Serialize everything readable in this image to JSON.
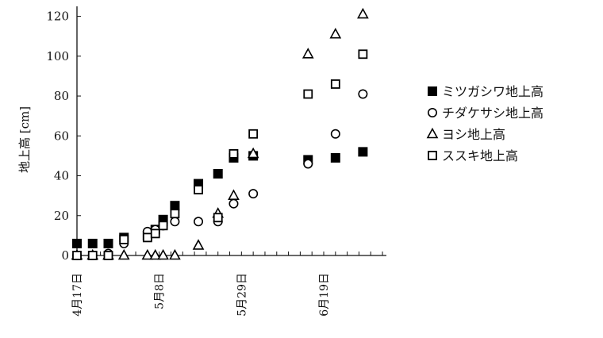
{
  "chart_data": {
    "type": "scatter",
    "title": "",
    "ylabel": "地上高 [cm]",
    "xlabel": "",
    "ylim": [
      0,
      125
    ],
    "yticks": [
      0,
      20,
      40,
      60,
      80,
      100,
      120
    ],
    "xlim": [
      "2009-04-17",
      "2009-07-05"
    ],
    "xtick_labels": [
      {
        "date": "2009-04-17",
        "label": "4月17日"
      },
      {
        "date": "2009-05-08",
        "label": "5月8日"
      },
      {
        "date": "2009-05-29",
        "label": "5月29日"
      },
      {
        "date": "2009-06-19",
        "label": "6月19日"
      }
    ],
    "legend_position": "right",
    "grid": false,
    "series": [
      {
        "name": "ミツガシワ地上高",
        "marker": "filled-square",
        "color": "#000000",
        "points": [
          {
            "x": "2009-04-17",
            "y": 6
          },
          {
            "x": "2009-04-21",
            "y": 6
          },
          {
            "x": "2009-04-25",
            "y": 6
          },
          {
            "x": "2009-04-29",
            "y": 9
          },
          {
            "x": "2009-05-05",
            "y": 10
          },
          {
            "x": "2009-05-07",
            "y": 13
          },
          {
            "x": "2009-05-09",
            "y": 18
          },
          {
            "x": "2009-05-12",
            "y": 25
          },
          {
            "x": "2009-05-18",
            "y": 36
          },
          {
            "x": "2009-05-23",
            "y": 41
          },
          {
            "x": "2009-05-27",
            "y": 49
          },
          {
            "x": "2009-06-01",
            "y": 50
          },
          {
            "x": "2009-06-15",
            "y": 48
          },
          {
            "x": "2009-06-22",
            "y": 49
          },
          {
            "x": "2009-06-29",
            "y": 52
          }
        ]
      },
      {
        "name": "チダケサシ地上高",
        "marker": "open-circle",
        "color": "#000000",
        "points": [
          {
            "x": "2009-04-17",
            "y": 0
          },
          {
            "x": "2009-04-21",
            "y": 0
          },
          {
            "x": "2009-04-25",
            "y": 1
          },
          {
            "x": "2009-04-29",
            "y": 6
          },
          {
            "x": "2009-05-05",
            "y": 12
          },
          {
            "x": "2009-05-07",
            "y": 13
          },
          {
            "x": "2009-05-09",
            "y": 15
          },
          {
            "x": "2009-05-12",
            "y": 17
          },
          {
            "x": "2009-05-18",
            "y": 17
          },
          {
            "x": "2009-05-23",
            "y": 17
          },
          {
            "x": "2009-05-27",
            "y": 26
          },
          {
            "x": "2009-06-01",
            "y": 31
          },
          {
            "x": "2009-06-15",
            "y": 46
          },
          {
            "x": "2009-06-22",
            "y": 61
          },
          {
            "x": "2009-06-29",
            "y": 81
          }
        ]
      },
      {
        "name": "ヨシ地上高",
        "marker": "open-triangle",
        "color": "#000000",
        "points": [
          {
            "x": "2009-04-17",
            "y": 0
          },
          {
            "x": "2009-04-21",
            "y": 0
          },
          {
            "x": "2009-04-25",
            "y": 0
          },
          {
            "x": "2009-04-29",
            "y": 0
          },
          {
            "x": "2009-05-05",
            "y": 0
          },
          {
            "x": "2009-05-07",
            "y": 0
          },
          {
            "x": "2009-05-09",
            "y": 0
          },
          {
            "x": "2009-05-12",
            "y": 0
          },
          {
            "x": "2009-05-18",
            "y": 5
          },
          {
            "x": "2009-05-23",
            "y": 21
          },
          {
            "x": "2009-05-27",
            "y": 30
          },
          {
            "x": "2009-06-01",
            "y": 51
          },
          {
            "x": "2009-06-15",
            "y": 101
          },
          {
            "x": "2009-06-22",
            "y": 111
          },
          {
            "x": "2009-06-29",
            "y": 121
          }
        ]
      },
      {
        "name": "ススキ地上高",
        "marker": "open-square",
        "color": "#000000",
        "points": [
          {
            "x": "2009-04-17",
            "y": 0
          },
          {
            "x": "2009-04-21",
            "y": 0
          },
          {
            "x": "2009-04-25",
            "y": 0
          },
          {
            "x": "2009-04-29",
            "y": 8
          },
          {
            "x": "2009-05-05",
            "y": 9
          },
          {
            "x": "2009-05-07",
            "y": 11
          },
          {
            "x": "2009-05-09",
            "y": 15
          },
          {
            "x": "2009-05-12",
            "y": 21
          },
          {
            "x": "2009-05-18",
            "y": 33
          },
          {
            "x": "2009-05-23",
            "y": 19
          },
          {
            "x": "2009-05-27",
            "y": 51
          },
          {
            "x": "2009-06-01",
            "y": 61
          },
          {
            "x": "2009-06-15",
            "y": 81
          },
          {
            "x": "2009-06-22",
            "y": 86
          },
          {
            "x": "2009-06-29",
            "y": 101
          }
        ]
      }
    ]
  }
}
